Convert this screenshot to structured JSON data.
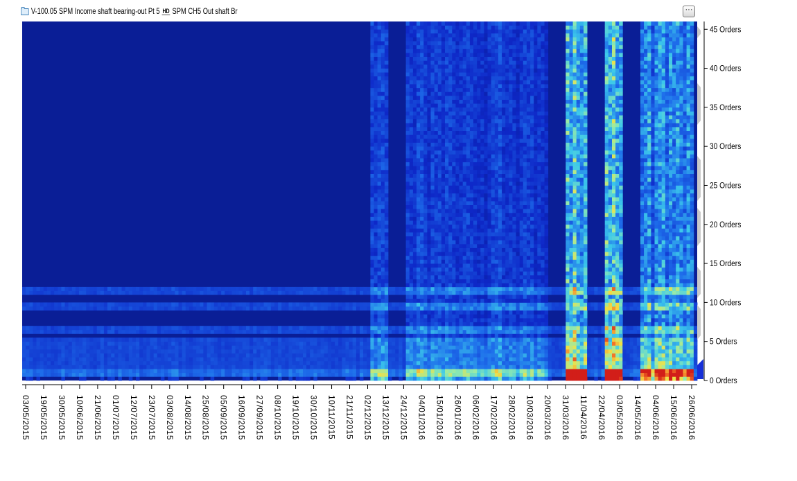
{
  "title": {
    "point": "V-100.05 SPM Income shaft bearing-out Pt 5",
    "hd": "HD",
    "channel": "SPM CH5 Out shaft Br"
  },
  "more_button": "···",
  "colors": {
    "low": "#0a1e96",
    "mid": "#2ea0e6",
    "high": "#f0e04a",
    "peak": "#d8281c",
    "marker": "#1630d8"
  },
  "chart_data": {
    "type": "heatmap",
    "title": "",
    "xlabel": "",
    "ylabel": "",
    "y_axis_side": "right",
    "ylim": [
      0,
      46
    ],
    "y_ticks": [
      0,
      5,
      10,
      15,
      20,
      25,
      30,
      35,
      40,
      45
    ],
    "y_tick_labels": [
      "0 Orders",
      "5 Orders",
      "10 Orders",
      "15 Orders",
      "20 Orders",
      "25 Orders",
      "30 Orders",
      "35 Orders",
      "40 Orders",
      "45 Orders"
    ],
    "x_tick_labels": [
      "03/05/2015",
      "19/05/2015",
      "30/05/2015",
      "10/06/2015",
      "21/06/2015",
      "01/07/2015",
      "12/07/2015",
      "23/07/2015",
      "03/08/2015",
      "14/08/2015",
      "25/08/2015",
      "05/09/2015",
      "16/09/2015",
      "27/09/2015",
      "08/10/2015",
      "19/10/2015",
      "30/10/2015",
      "10/11/2015",
      "21/11/2015",
      "02/12/2015",
      "13/12/2015",
      "24/12/2015",
      "04/01/2016",
      "15/01/2016",
      "26/01/2016",
      "06/02/2016",
      "17/02/2016",
      "28/02/2016",
      "10/03/2016",
      "20/03/2016",
      "31/03/2016",
      "11/04/2016",
      "22/04/2016",
      "03/05/2016",
      "14/05/2016",
      "04/06/2016",
      "15/06/2016",
      "26/06/2016"
    ],
    "colorscale": "jet",
    "z_range": [
      0,
      1
    ],
    "harmonic_bands_orders": [
      1,
      2,
      3,
      4,
      5,
      6.5,
      9.5,
      11.5
    ],
    "bright_columns": [
      {
        "from": "02/12/2015",
        "to": "13/12/2015",
        "level": 0.45
      },
      {
        "from": "24/12/2015",
        "to": "20/03/2016",
        "level": 0.35
      },
      {
        "from": "31/03/2016",
        "to": "11/04/2016",
        "level": 0.8
      },
      {
        "from": "22/04/2016",
        "to": "03/05/2016",
        "level": 0.95
      },
      {
        "from": "14/05/2016",
        "to": "26/06/2016",
        "level": 0.6
      }
    ]
  }
}
